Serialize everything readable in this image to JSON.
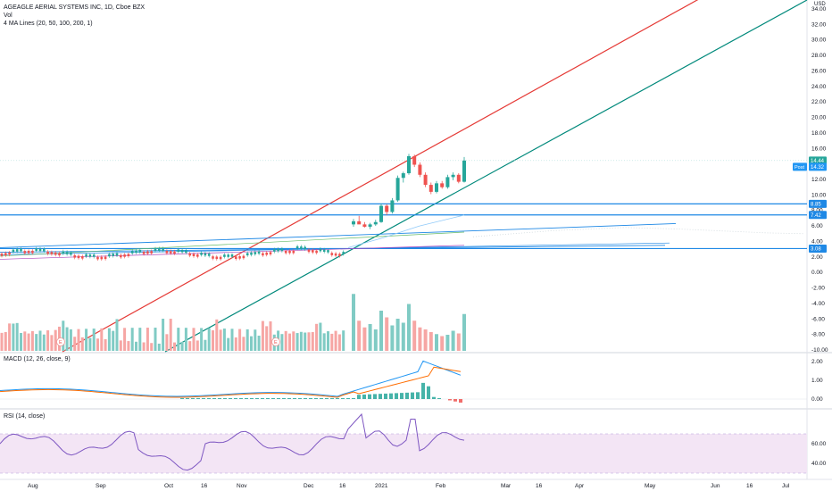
{
  "header": {
    "symbol_line": "AGEAGLE AERIAL SYSTEMS INC, 1D, Cboe BZX",
    "vol_label": "Vol",
    "ma_label": "4 MA Lines (20, 50, 100, 200, 1)"
  },
  "macd_label": "MACD (12, 26, close, 9)",
  "rsi_label": "RSI (14, close)",
  "currency": "USD",
  "colors": {
    "up": "#26a69a",
    "down": "#ef5350",
    "vol_up": "#80cbc4",
    "vol_down": "#f6a6a4",
    "red_trend": "#e53935",
    "green_trend": "#00897b",
    "hline": "#1e88e5",
    "macd": "#2196f3",
    "signal": "#ff6d00",
    "rsi": "#7e57c2",
    "rsi_band": "#f3e5f5"
  },
  "price_badges": {
    "last": "14.44",
    "post_label": "Post",
    "post": "14.32",
    "level_1": "8.85",
    "level_2": "7.42",
    "level_3": "3.08"
  },
  "chart_data": [
    {
      "type": "candlestick",
      "title": "AGEAGLE AERIAL SYSTEMS INC, 1D, Cboe BZX",
      "x_ticks": [
        "Aug",
        "Sep",
        "Oct",
        "16",
        "Nov",
        "Dec",
        "16",
        "2021",
        "Feb",
        "Mar",
        "16",
        "Apr",
        "May",
        "Jun",
        "16",
        "Jul"
      ],
      "y_ticks": [
        "34.00",
        "32.00",
        "30.00",
        "28.00",
        "26.00",
        "24.00",
        "22.00",
        "20.00",
        "18.00",
        "16.00",
        "14.00",
        "12.00",
        "10.00",
        "8.00",
        "6.00",
        "4.00",
        "2.00",
        "0.00",
        "-2.00",
        "-4.00",
        "-6.00",
        "-8.00",
        "-10.00"
      ],
      "ylim": [
        -10,
        35
      ],
      "horizontal_levels": [
        8.85,
        7.42,
        3.08
      ],
      "candles": [
        {
          "d": "2021-01-04",
          "o": 6.2,
          "h": 6.9,
          "l": 5.9,
          "c": 6.6
        },
        {
          "d": "2021-01-05",
          "o": 6.6,
          "h": 7.3,
          "l": 6.3,
          "c": 6.2
        },
        {
          "d": "2021-01-06",
          "o": 6.2,
          "h": 6.5,
          "l": 5.8,
          "c": 5.9
        },
        {
          "d": "2021-01-07",
          "o": 5.9,
          "h": 6.4,
          "l": 5.6,
          "c": 6.2
        },
        {
          "d": "2021-01-08",
          "o": 6.2,
          "h": 6.8,
          "l": 6.0,
          "c": 6.5
        },
        {
          "d": "2021-01-11",
          "o": 6.5,
          "h": 8.9,
          "l": 6.4,
          "c": 8.6
        },
        {
          "d": "2021-01-12",
          "o": 8.6,
          "h": 8.8,
          "l": 7.4,
          "c": 7.8
        },
        {
          "d": "2021-01-13",
          "o": 7.8,
          "h": 9.6,
          "l": 7.6,
          "c": 9.3
        },
        {
          "d": "2021-01-14",
          "o": 9.3,
          "h": 12.5,
          "l": 9.1,
          "c": 12.2
        },
        {
          "d": "2021-01-15",
          "o": 12.2,
          "h": 13.0,
          "l": 11.6,
          "c": 12.8
        },
        {
          "d": "2021-01-19",
          "o": 12.8,
          "h": 15.3,
          "l": 12.6,
          "c": 15.0
        },
        {
          "d": "2021-01-20",
          "o": 15.0,
          "h": 15.2,
          "l": 13.6,
          "c": 13.9
        },
        {
          "d": "2021-01-21",
          "o": 13.9,
          "h": 14.2,
          "l": 12.3,
          "c": 12.6
        },
        {
          "d": "2021-01-22",
          "o": 12.6,
          "h": 12.9,
          "l": 11.0,
          "c": 11.3
        },
        {
          "d": "2021-01-25",
          "o": 11.3,
          "h": 11.6,
          "l": 10.1,
          "c": 10.4
        },
        {
          "d": "2021-01-26",
          "o": 10.4,
          "h": 11.8,
          "l": 10.2,
          "c": 11.5
        },
        {
          "d": "2021-01-27",
          "o": 11.5,
          "h": 11.8,
          "l": 10.8,
          "c": 11.0
        },
        {
          "d": "2021-01-28",
          "o": 11.0,
          "h": 12.6,
          "l": 10.8,
          "c": 12.3
        },
        {
          "d": "2021-01-29",
          "o": 12.3,
          "h": 12.9,
          "l": 11.9,
          "c": 12.6
        },
        {
          "d": "2021-02-01",
          "o": 12.6,
          "h": 12.8,
          "l": 11.5,
          "c": 11.7
        },
        {
          "d": "2021-02-02",
          "o": 11.7,
          "h": 14.9,
          "l": 11.6,
          "c": 14.44
        }
      ]
    },
    {
      "type": "bar",
      "title": "Vol",
      "note": "relative volume heights (0-1), colored by candle direction",
      "recent_values": [
        0.85,
        0.45,
        0.35,
        0.4,
        0.32,
        0.6,
        0.5,
        0.38,
        0.48,
        0.42,
        0.7,
        0.45,
        0.35,
        0.32,
        0.28,
        0.25,
        0.22,
        0.24,
        0.3,
        0.26,
        0.55
      ]
    },
    {
      "type": "line",
      "title": "MACD (12, 26, close, 9)",
      "y_ticks": [
        "2.00",
        "1.00",
        "0.00"
      ],
      "ylim": [
        -0.5,
        2.5
      ]
    },
    {
      "type": "line",
      "title": "RSI (14, close)",
      "y_ticks": [
        "60.00",
        "40.00"
      ],
      "ylim": [
        25,
        95
      ],
      "band": [
        30,
        70
      ]
    }
  ]
}
